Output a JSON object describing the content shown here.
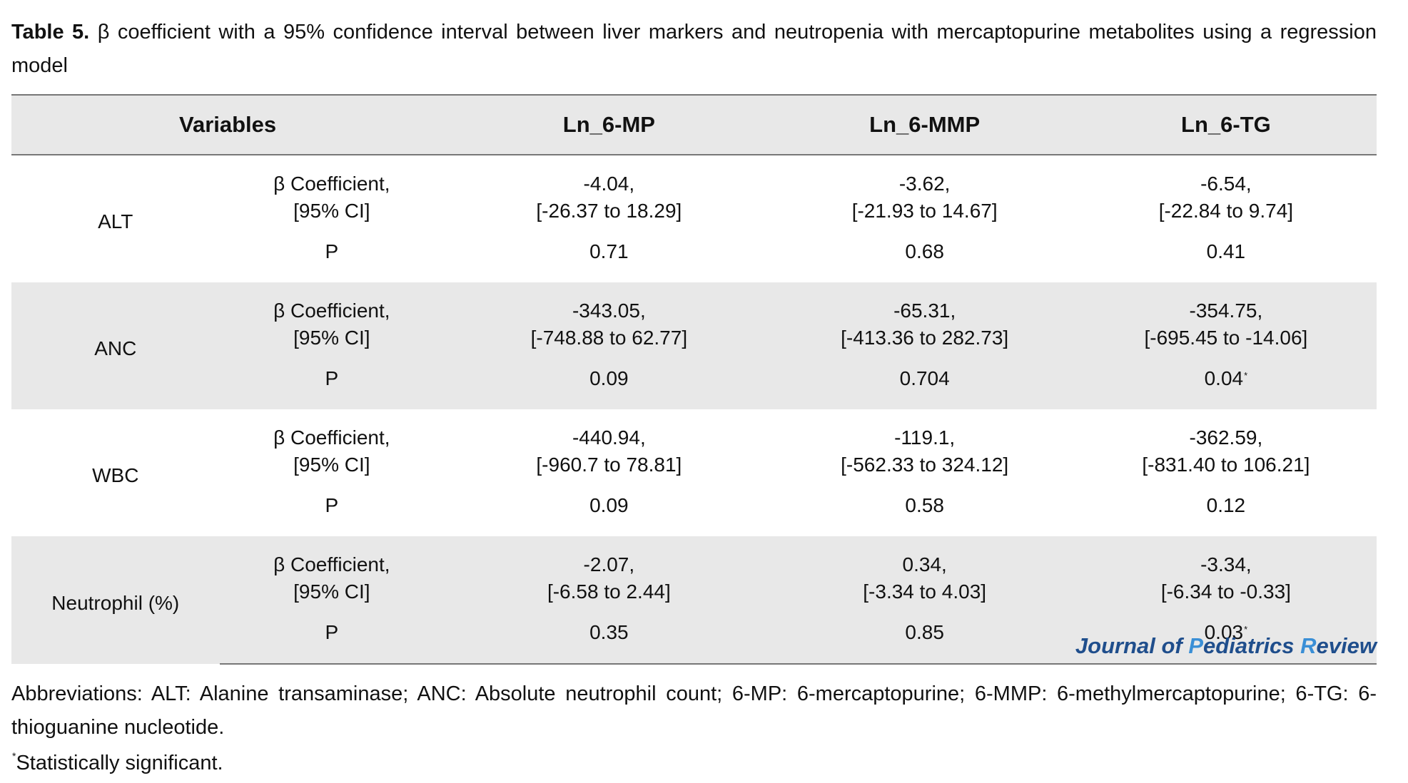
{
  "caption": {
    "label": "Table 5.",
    "text": "β coefficient with a 95% confidence interval between liver markers and neutropenia with mercaptopurine metabolites using a regression model"
  },
  "table": {
    "headers": [
      "Variables",
      "Ln_6-MP",
      "Ln_6-MMP",
      "Ln_6-TG"
    ],
    "coef_label_line1": "β Coefficient,",
    "coef_label_line2": "[95% CI]",
    "p_label": "P",
    "groups": [
      {
        "variable": "ALT",
        "coef": [
          {
            "beta": "-4.04,",
            "ci": "[-26.37 to 18.29]"
          },
          {
            "beta": "-3.62,",
            "ci": "[-21.93 to 14.67]"
          },
          {
            "beta": "-6.54,",
            "ci": "[-22.84 to 9.74]"
          }
        ],
        "p": [
          {
            "value": "0.71",
            "mark": ""
          },
          {
            "value": "0.68",
            "mark": ""
          },
          {
            "value": "0.41",
            "mark": ""
          }
        ]
      },
      {
        "variable": "ANC",
        "coef": [
          {
            "beta": "-343.05,",
            "ci": "[-748.88 to 62.77]"
          },
          {
            "beta": "-65.31,",
            "ci": "[-413.36 to 282.73]"
          },
          {
            "beta": "-354.75,",
            "ci": "[-695.45 to -14.06]"
          }
        ],
        "p": [
          {
            "value": "0.09",
            "mark": ""
          },
          {
            "value": "0.704",
            "mark": ""
          },
          {
            "value": "0.04",
            "mark": "*"
          }
        ]
      },
      {
        "variable": "WBC",
        "coef": [
          {
            "beta": "-440.94,",
            "ci": "[-960.7 to 78.81]"
          },
          {
            "beta": "-119.1,",
            "ci": "[-562.33 to 324.12]"
          },
          {
            "beta": "-362.59,",
            "ci": "[-831.40 to 106.21]"
          }
        ],
        "p": [
          {
            "value": "0.09",
            "mark": ""
          },
          {
            "value": "0.58",
            "mark": ""
          },
          {
            "value": "0.12",
            "mark": ""
          }
        ]
      },
      {
        "variable": "Neutrophil (%)",
        "coef": [
          {
            "beta": "-2.07,",
            "ci": "[-6.58 to 2.44]"
          },
          {
            "beta": "0.34,",
            "ci": "[-3.34 to 4.03]"
          },
          {
            "beta": "-3.34,",
            "ci": "[-6.34 to -0.33]"
          }
        ],
        "p": [
          {
            "value": "0.35",
            "mark": ""
          },
          {
            "value": "0.85",
            "mark": ""
          },
          {
            "value": "0.03",
            "mark": "*"
          }
        ]
      }
    ]
  },
  "journal": {
    "part1": "Journal of ",
    "part2": "P",
    "part3": "ediatrics ",
    "part4": "R",
    "part5": "eview"
  },
  "abbreviations": "Abbreviations: ALT: Alanine transaminase; ANC: Absolute neutrophil count; 6-MP: 6-mercaptopurine; 6-MMP: 6-methylmercaptopurine; 6-TG: 6-thioguanine nucleotide.",
  "footnote": {
    "mark": "*",
    "text": "Statistically significant."
  }
}
